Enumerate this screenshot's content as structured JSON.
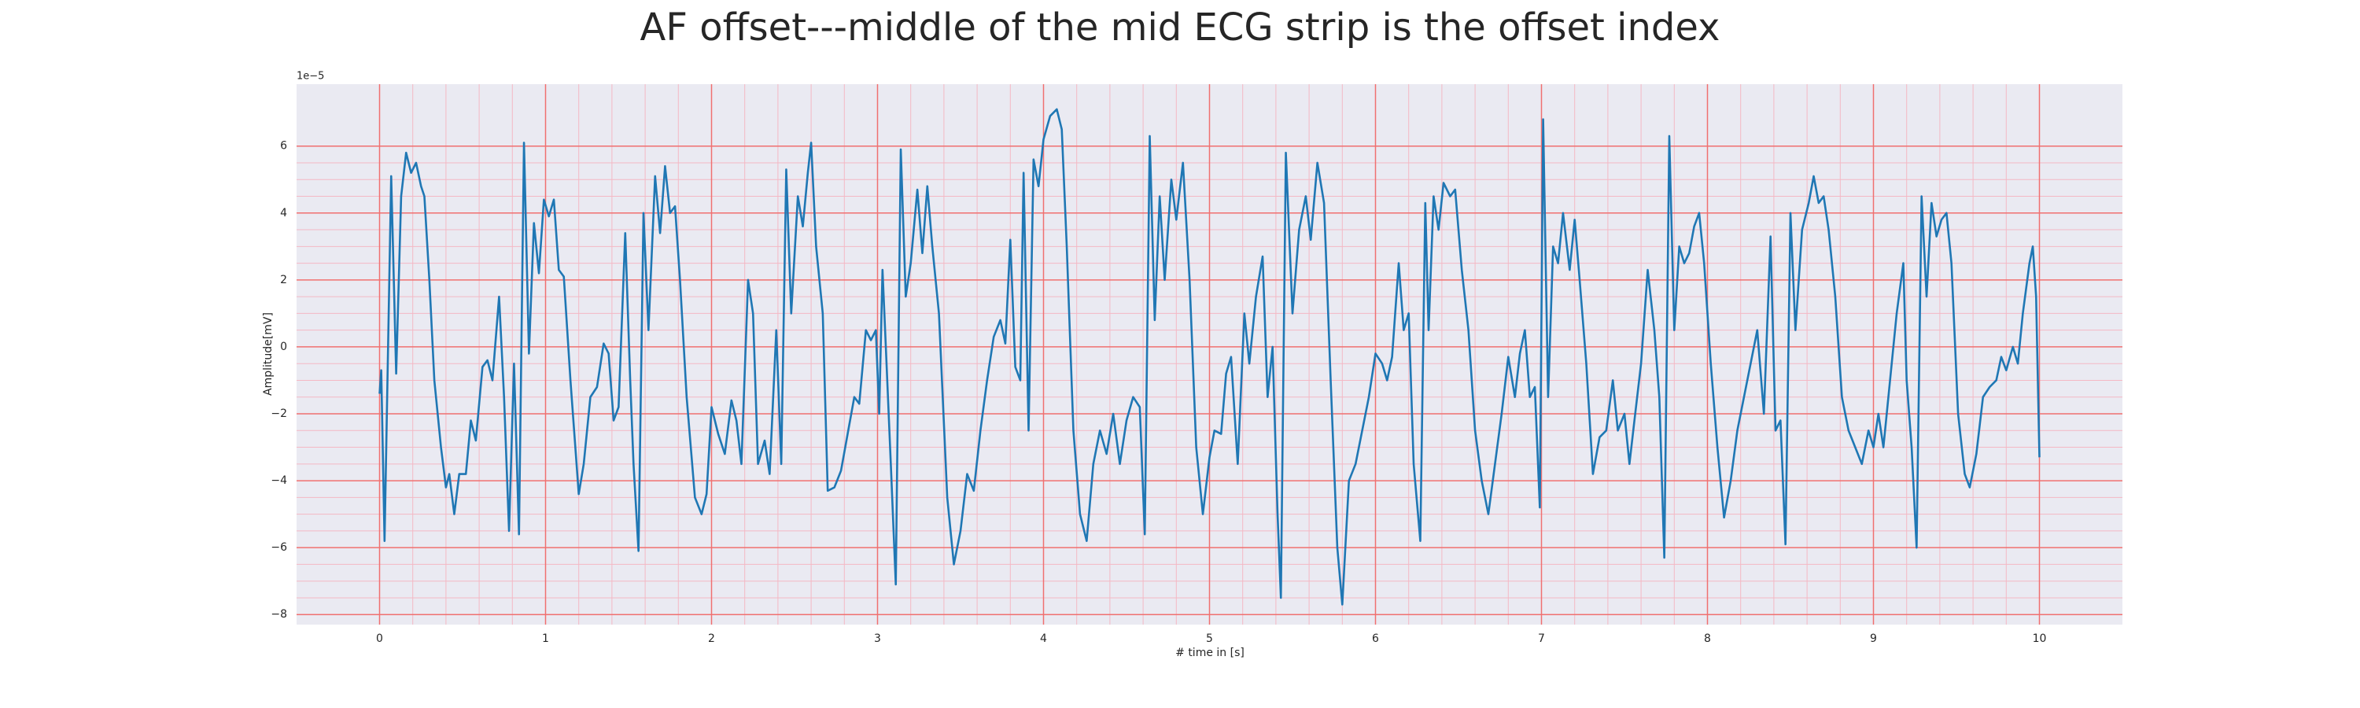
{
  "chart_data": {
    "type": "line",
    "title": "AF offset---middle of the mid ECG strip is the offset index",
    "x_label": "# time in [s]",
    "y_label": "Amplitude[mV]",
    "y_offset_label": "1e−5",
    "color": "#1f77b4",
    "grid": true,
    "xlim": [
      -0.5,
      10.5
    ],
    "ylim": [
      -8.3,
      7.85
    ],
    "xticks": [
      0,
      1,
      2,
      3,
      4,
      5,
      6,
      7,
      8,
      9,
      10
    ],
    "yticks": [
      {
        "value": -8,
        "label": "−8"
      },
      {
        "value": -6,
        "label": "−6"
      },
      {
        "value": -4,
        "label": "−4"
      },
      {
        "value": -2,
        "label": "−2"
      },
      0,
      2,
      4,
      6
    ],
    "x": [
      0,
      0.01,
      0.03,
      0.07,
      0.1,
      0.13,
      0.16,
      0.19,
      0.22,
      0.25,
      0.27,
      0.3,
      0.33,
      0.37,
      0.4,
      0.42,
      0.45,
      0.48,
      0.52,
      0.55,
      0.58,
      0.62,
      0.65,
      0.68,
      0.72,
      0.75,
      0.78,
      0.81,
      0.84,
      0.87,
      0.9,
      0.93,
      0.96,
      0.99,
      1.02,
      1.05,
      1.08,
      1.11,
      1.15,
      1.2,
      1.23,
      1.27,
      1.31,
      1.35,
      1.38,
      1.41,
      1.44,
      1.48,
      1.51,
      1.53,
      1.56,
      1.59,
      1.62,
      1.66,
      1.69,
      1.72,
      1.75,
      1.78,
      1.81,
      1.85,
      1.9,
      1.94,
      1.97,
      2.0,
      2.04,
      2.08,
      2.12,
      2.15,
      2.18,
      2.22,
      2.25,
      2.28,
      2.32,
      2.35,
      2.39,
      2.42,
      2.45,
      2.48,
      2.52,
      2.55,
      2.58,
      2.6,
      2.63,
      2.67,
      2.7,
      2.74,
      2.78,
      2.82,
      2.86,
      2.89,
      2.93,
      2.96,
      2.99,
      3.01,
      3.03,
      3.05,
      3.08,
      3.11,
      3.14,
      3.17,
      3.2,
      3.24,
      3.27,
      3.3,
      3.33,
      3.37,
      3.42,
      3.46,
      3.5,
      3.54,
      3.58,
      3.62,
      3.66,
      3.7,
      3.74,
      3.77,
      3.8,
      3.83,
      3.86,
      3.88,
      3.91,
      3.94,
      3.97,
      4.0,
      4.04,
      4.08,
      4.11,
      4.14,
      4.18,
      4.22,
      4.26,
      4.3,
      4.34,
      4.38,
      4.42,
      4.46,
      4.5,
      4.54,
      4.58,
      4.61,
      4.64,
      4.67,
      4.7,
      4.73,
      4.77,
      4.8,
      4.84,
      4.88,
      4.92,
      4.96,
      5.0,
      5.03,
      5.07,
      5.1,
      5.13,
      5.17,
      5.21,
      5.24,
      5.28,
      5.32,
      5.35,
      5.38,
      5.41,
      5.43,
      5.46,
      5.5,
      5.54,
      5.58,
      5.61,
      5.65,
      5.69,
      5.73,
      5.77,
      5.8,
      5.84,
      5.88,
      5.92,
      5.96,
      6.0,
      6.04,
      6.07,
      6.1,
      6.14,
      6.17,
      6.2,
      6.23,
      6.27,
      6.3,
      6.32,
      6.35,
      6.38,
      6.41,
      6.45,
      6.48,
      6.52,
      6.56,
      6.6,
      6.64,
      6.68,
      6.72,
      6.76,
      6.8,
      6.84,
      6.87,
      6.9,
      6.93,
      6.96,
      6.99,
      7.01,
      7.04,
      7.07,
      7.1,
      7.13,
      7.17,
      7.2,
      7.23,
      7.27,
      7.31,
      7.35,
      7.39,
      7.43,
      7.46,
      7.5,
      7.53,
      7.56,
      7.6,
      7.64,
      7.68,
      7.71,
      7.74,
      7.77,
      7.8,
      7.83,
      7.86,
      7.89,
      7.92,
      7.95,
      7.98,
      8.02,
      8.06,
      8.1,
      8.14,
      8.18,
      8.22,
      8.26,
      8.3,
      8.34,
      8.38,
      8.41,
      8.44,
      8.47,
      8.5,
      8.53,
      8.57,
      8.61,
      8.64,
      8.67,
      8.7,
      8.73,
      8.77,
      8.81,
      8.85,
      8.89,
      8.93,
      8.97,
      9.0,
      9.03,
      9.06,
      9.1,
      9.14,
      9.18,
      9.2,
      9.23,
      9.26,
      9.29,
      9.32,
      9.35,
      9.38,
      9.41,
      9.44,
      9.47,
      9.51,
      9.55,
      9.58,
      9.62,
      9.66,
      9.7,
      9.74,
      9.77,
      9.8,
      9.84,
      9.87,
      9.9,
      9.94,
      9.96,
      9.98,
      10.0
    ],
    "values": [
      -1.4,
      -0.7,
      -5.8,
      5.1,
      -0.8,
      4.5,
      5.8,
      5.2,
      5.5,
      4.8,
      4.5,
      2.0,
      -1,
      -3,
      -4.2,
      -3.8,
      -5.0,
      -3.8,
      -3.8,
      -2.2,
      -2.8,
      -0.6,
      -0.4,
      -1.0,
      1.5,
      -1.5,
      -5.5,
      -0.5,
      -5.6,
      6.1,
      -0.2,
      3.7,
      2.2,
      4.4,
      3.9,
      4.4,
      2.3,
      2.1,
      -1,
      -4.4,
      -3.5,
      -1.5,
      -1.2,
      0.1,
      -0.2,
      -2.2,
      -1.8,
      3.4,
      -1.0,
      -3.5,
      -6.1,
      4.0,
      0.5,
      5.1,
      3.4,
      5.4,
      4.0,
      4.2,
      2,
      -1.5,
      -4.5,
      -5.0,
      -4.4,
      -1.8,
      -2.6,
      -3.2,
      -1.6,
      -2.2,
      -3.5,
      2.0,
      1.0,
      -3.5,
      -2.8,
      -3.8,
      0.5,
      -3.5,
      5.3,
      1.0,
      4.5,
      3.6,
      5.2,
      6.1,
      3.0,
      1.0,
      -4.3,
      -4.2,
      -3.7,
      -2.6,
      -1.5,
      -1.7,
      0.5,
      0.2,
      0.5,
      -2,
      2.3,
      0,
      -3.5,
      -7.1,
      5.9,
      1.5,
      2.5,
      4.7,
      2.8,
      4.8,
      3.0,
      1.0,
      -4.5,
      -6.5,
      -5.5,
      -3.8,
      -4.3,
      -2.5,
      -1.0,
      0.3,
      0.8,
      0.1,
      3.2,
      -0.6,
      -1.0,
      5.2,
      -2.5,
      5.6,
      4.8,
      6.2,
      6.9,
      7.1,
      6.5,
      3,
      -2.5,
      -5,
      -5.8,
      -3.5,
      -2.5,
      -3.2,
      -2.0,
      -3.5,
      -2.2,
      -1.5,
      -1.8,
      -5.6,
      6.3,
      0.8,
      4.5,
      2,
      5.0,
      3.8,
      5.5,
      2,
      -3.0,
      -5.0,
      -3.3,
      -2.5,
      -2.6,
      -0.8,
      -0.3,
      -3.5,
      1.0,
      -0.5,
      1.5,
      2.7,
      -1.5,
      0,
      -5.0,
      -7.5,
      5.8,
      1.0,
      3.5,
      4.5,
      3.2,
      5.5,
      4.3,
      -1.0,
      -6.0,
      -7.7,
      -4.0,
      -3.5,
      -2.5,
      -1.5,
      -0.2,
      -0.5,
      -1.0,
      -0.3,
      2.5,
      0.5,
      1.0,
      -3.5,
      -5.8,
      4.3,
      0.5,
      4.5,
      3.5,
      4.9,
      4.5,
      4.7,
      2.3,
      0.5,
      -2.5,
      -4.0,
      -5.0,
      -3.5,
      -2.0,
      -0.3,
      -1.5,
      -0.2,
      0.5,
      -1.5,
      -1.2,
      -4.8,
      6.8,
      -1.5,
      3,
      2.5,
      4.0,
      2.3,
      3.8,
      2.0,
      -0.5,
      -3.8,
      -2.7,
      -2.5,
      -1.0,
      -2.5,
      -2.0,
      -3.5,
      -2.2,
      -0.5,
      2.3,
      0.5,
      -1.5,
      -6.3,
      6.3,
      0.5,
      3.0,
      2.5,
      2.8,
      3.6,
      4.0,
      2.5,
      -0.5,
      -3.0,
      -5.1,
      -4.0,
      -2.5,
      -1.5,
      -0.5,
      0.5,
      -2.0,
      3.3,
      -2.5,
      -2.2,
      -5.9,
      4.0,
      0.5,
      3.5,
      4.3,
      5.1,
      4.3,
      4.5,
      3.5,
      1.5,
      -1.5,
      -2.5,
      -3.0,
      -3.5,
      -2.5,
      -3.0,
      -2.0,
      -3.0,
      -1.0,
      1.0,
      2.5,
      -1,
      -3.0,
      -6.0,
      4.5,
      1.5,
      4.3,
      3.3,
      3.8,
      4.0,
      2.5,
      -2.0,
      -3.8,
      -4.2,
      -3.2,
      -1.5,
      -1.2,
      -1.0,
      -0.3,
      -0.7,
      0,
      -0.5,
      1,
      2.5,
      3.0,
      1.5,
      -3.3
    ]
  }
}
